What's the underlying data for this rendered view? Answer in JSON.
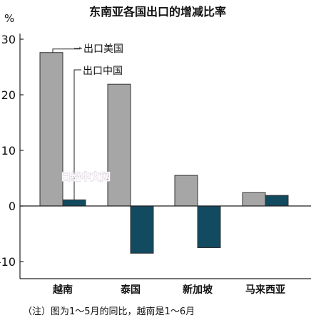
{
  "chart_data": {
    "type": "bar",
    "title": "东南亚各国出口的增减比率",
    "ylabel": "%",
    "ylim": [
      -13,
      31
    ],
    "yticks": [
      30,
      20,
      10,
      0,
      -10
    ],
    "categories": [
      "越南",
      "泰国",
      "新加坡",
      "马来西亚"
    ],
    "series": [
      {
        "name": "出口美国",
        "color": "#a6a6a6",
        "values": [
          27.6,
          21.9,
          5.5,
          2.4
        ]
      },
      {
        "name": "出口中国",
        "color": "#124a60",
        "values": [
          1.1,
          -8.5,
          -7.5,
          1.9
        ]
      }
    ],
    "note": "（注）图为1～5月的同比，越南是1～6月",
    "watermark": "日经中文网"
  }
}
